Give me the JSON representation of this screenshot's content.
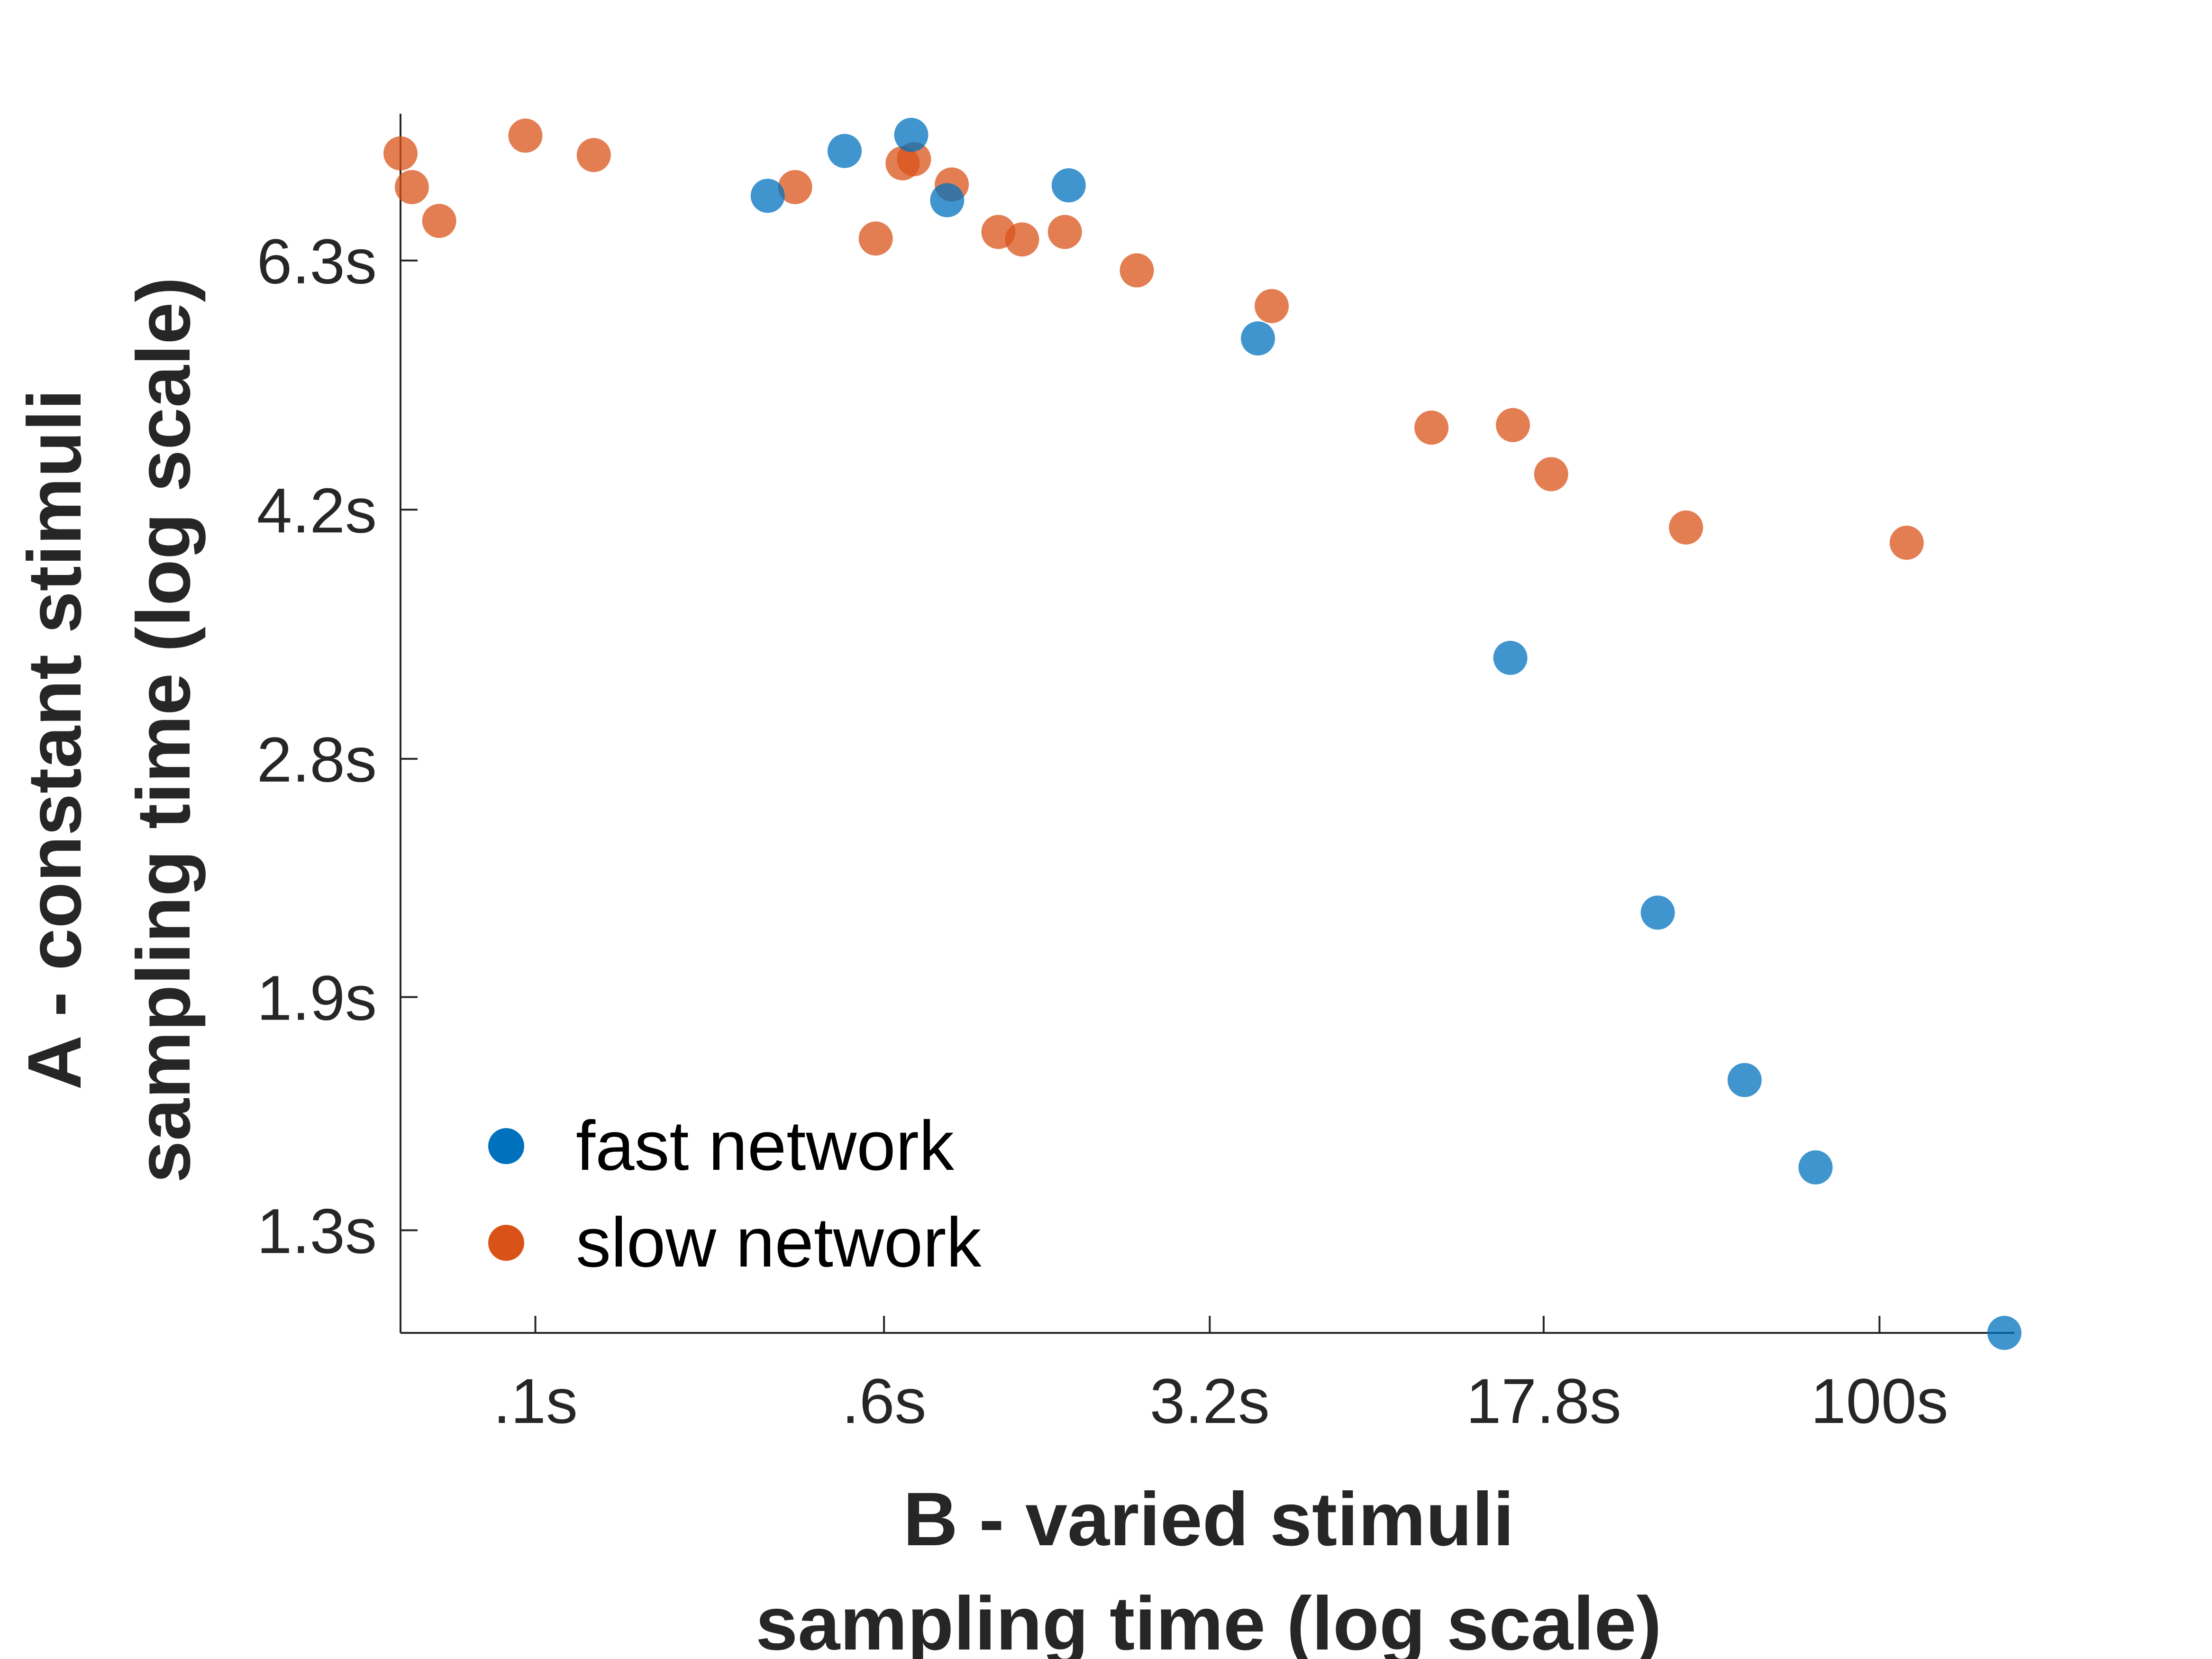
{
  "chart_data": {
    "type": "scatter",
    "xlabel": [
      "B - varied stimuli",
      "sampling time (log scale)"
    ],
    "ylabel": [
      "A - constant stimuli",
      "sampling time (log scale)"
    ],
    "x_scale": "log",
    "y_scale": "log",
    "xlim": [
      0.05,
      200
    ],
    "ylim": [
      1.1,
      8.0
    ],
    "x_ticks": [
      0.1,
      0.6,
      3.2,
      17.8,
      100
    ],
    "x_tick_labels": [
      ".1s",
      ".6s",
      "3.2s",
      "17.8s",
      "100s"
    ],
    "y_ticks": [
      1.3,
      1.9,
      2.8,
      4.2,
      6.3
    ],
    "y_tick_labels": [
      "1.3s",
      "1.9s",
      "2.8s",
      "4.2s",
      "6.3s"
    ],
    "grid": false,
    "legend_position": "bottom-left",
    "series": [
      {
        "name": "fast network",
        "color": "#0072BD",
        "points": [
          {
            "x": 0.33,
            "y": 7.0
          },
          {
            "x": 0.49,
            "y": 7.53
          },
          {
            "x": 0.69,
            "y": 7.73
          },
          {
            "x": 0.83,
            "y": 6.95
          },
          {
            "x": 1.55,
            "y": 7.12
          },
          {
            "x": 4.1,
            "y": 5.55
          },
          {
            "x": 15.0,
            "y": 3.3
          },
          {
            "x": 32.0,
            "y": 2.18
          },
          {
            "x": 50.0,
            "y": 1.66
          },
          {
            "x": 72.0,
            "y": 1.44
          },
          {
            "x": 190.0,
            "y": 1.1
          }
        ]
      },
      {
        "name": "slow network",
        "color": "#D95319",
        "points": [
          {
            "x": 0.05,
            "y": 7.5
          },
          {
            "x": 0.053,
            "y": 7.1
          },
          {
            "x": 0.061,
            "y": 6.72
          },
          {
            "x": 0.095,
            "y": 7.72
          },
          {
            "x": 0.135,
            "y": 7.48
          },
          {
            "x": 0.38,
            "y": 7.1
          },
          {
            "x": 0.575,
            "y": 6.53
          },
          {
            "x": 0.66,
            "y": 7.38
          },
          {
            "x": 0.7,
            "y": 7.43
          },
          {
            "x": 0.85,
            "y": 7.13
          },
          {
            "x": 1.08,
            "y": 6.6
          },
          {
            "x": 1.22,
            "y": 6.52
          },
          {
            "x": 1.52,
            "y": 6.6
          },
          {
            "x": 2.2,
            "y": 6.2
          },
          {
            "x": 4.4,
            "y": 5.85
          },
          {
            "x": 10.0,
            "y": 4.8
          },
          {
            "x": 15.2,
            "y": 4.82
          },
          {
            "x": 18.5,
            "y": 4.45
          },
          {
            "x": 37.0,
            "y": 4.08
          },
          {
            "x": 115.0,
            "y": 3.98
          }
        ]
      }
    ]
  }
}
